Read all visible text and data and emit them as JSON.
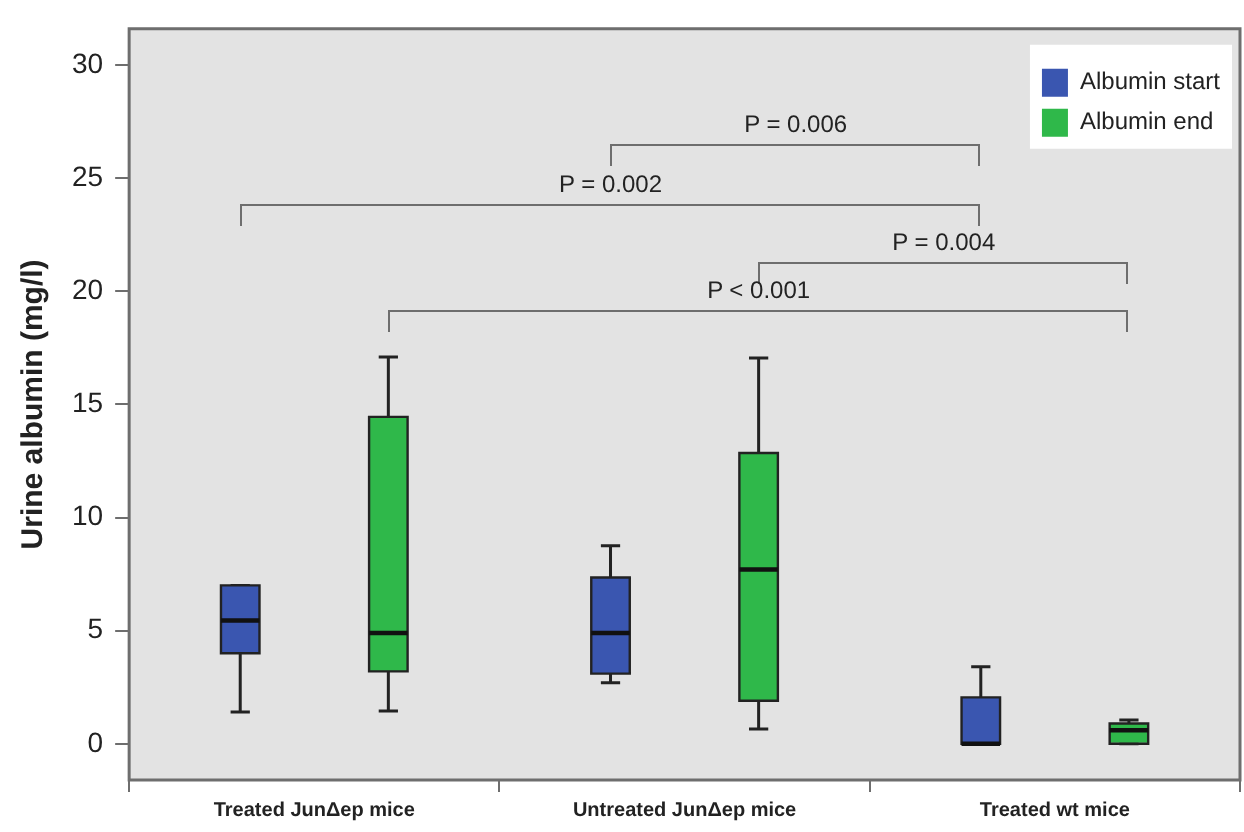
{
  "chart_data": {
    "type": "box",
    "ylabel": "Urine albumin (mg/l)",
    "categories": [
      "Treated JunΔep mice",
      "Untreated JunΔep mice",
      "Treated wt mice"
    ],
    "series": [
      {
        "name": "Albumin start",
        "color": "#3a56b0",
        "boxes": [
          {
            "low": 1.4,
            "q1": 4.0,
            "median": 5.45,
            "q3": 7.0,
            "high": 7.0
          },
          {
            "low": 2.7,
            "q1": 3.1,
            "median": 4.9,
            "q3": 7.35,
            "high": 8.75
          },
          {
            "low": 0,
            "q1": 0,
            "median": 0,
            "q3": 2.05,
            "high": 3.4
          }
        ]
      },
      {
        "name": "Albumin end",
        "color": "#2fb84a",
        "boxes": [
          {
            "low": 1.45,
            "q1": 3.2,
            "median": 4.9,
            "q3": 14.45,
            "high": 17.1
          },
          {
            "low": 0.65,
            "q1": 1.9,
            "median": 7.7,
            "q3": 12.85,
            "high": 17.05
          },
          {
            "low": 0,
            "q1": 0,
            "median": 0.6,
            "q3": 0.9,
            "high": 1.05
          }
        ]
      }
    ],
    "ylim": [
      -1.6,
      31.6
    ],
    "yticks": [
      0,
      5,
      10,
      15,
      20,
      25,
      30
    ],
    "grid": false,
    "legend": "top right",
    "annotations": [
      "P = 0.006",
      "P = 0.002",
      "P = 0.004",
      "P < 0.001"
    ]
  }
}
